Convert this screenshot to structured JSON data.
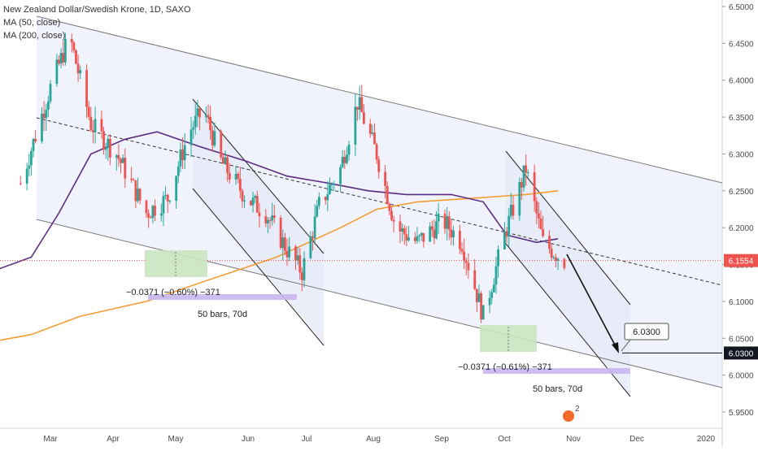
{
  "header": {
    "title": "New Zealand Dollar/Swedish Krone, 1D, SAXO",
    "ma50_label": "MA (50, close)",
    "ma200_label": "MA (200, close)"
  },
  "colors": {
    "up": "#26a69a",
    "down": "#ef5350",
    "ma50": "#5b2c83",
    "ma200": "#f39c32",
    "channel_fill": "#eef0fb",
    "current_price_badge": "#ef5350",
    "target_badge": "#131722",
    "measure_green": "#c9e6c1",
    "measure_purple": "#c9b6ef"
  },
  "chart_data": {
    "type": "candlestick",
    "title": "New Zealand Dollar/Swedish Krone, 1D, SAXO",
    "x_axis_labels": [
      "Mar",
      "Apr",
      "May",
      "Jun",
      "Jul",
      "Aug",
      "Sep",
      "Oct",
      "Nov",
      "Dec",
      "2020"
    ],
    "y_axis_labels": [
      "6.5000",
      "6.4500",
      "6.4000",
      "6.3500",
      "6.3000",
      "6.2500",
      "6.2000",
      "6.1500",
      "6.1000",
      "6.0500",
      "6.0000",
      "5.9500"
    ],
    "ylim": [
      5.935,
      6.505
    ],
    "grid": false,
    "series": [
      {
        "name": "MA (50, close)",
        "type": "line"
      },
      {
        "name": "MA (200, close)",
        "type": "line"
      }
    ],
    "approx_close_path": [
      {
        "date": "2019-02-15",
        "close": 6.26
      },
      {
        "date": "2019-03-01",
        "close": 6.39
      },
      {
        "date": "2019-03-10",
        "close": 6.46
      },
      {
        "date": "2019-03-20",
        "close": 6.34
      },
      {
        "date": "2019-04-01",
        "close": 6.3
      },
      {
        "date": "2019-04-15",
        "close": 6.22
      },
      {
        "date": "2019-04-25",
        "close": 6.24
      },
      {
        "date": "2019-05-05",
        "close": 6.33
      },
      {
        "date": "2019-05-12",
        "close": 6.36
      },
      {
        "date": "2019-05-20",
        "close": 6.29
      },
      {
        "date": "2019-06-01",
        "close": 6.24
      },
      {
        "date": "2019-06-10",
        "close": 6.22
      },
      {
        "date": "2019-06-20",
        "close": 6.17
      },
      {
        "date": "2019-06-27",
        "close": 6.14
      },
      {
        "date": "2019-07-05",
        "close": 6.23
      },
      {
        "date": "2019-07-15",
        "close": 6.28
      },
      {
        "date": "2019-07-23",
        "close": 6.37
      },
      {
        "date": "2019-08-01",
        "close": 6.3
      },
      {
        "date": "2019-08-10",
        "close": 6.2
      },
      {
        "date": "2019-08-20",
        "close": 6.18
      },
      {
        "date": "2019-09-01",
        "close": 6.21
      },
      {
        "date": "2019-09-10",
        "close": 6.18
      },
      {
        "date": "2019-09-20",
        "close": 6.08
      },
      {
        "date": "2019-09-30",
        "close": 6.19
      },
      {
        "date": "2019-10-10",
        "close": 6.28
      },
      {
        "date": "2019-10-18",
        "close": 6.18
      },
      {
        "date": "2019-10-28",
        "close": 6.155
      }
    ],
    "ma50_path": [
      {
        "date": "2019-02-01",
        "value": 6.14
      },
      {
        "date": "2019-02-20",
        "value": 6.16
      },
      {
        "date": "2019-03-05",
        "value": 6.22
      },
      {
        "date": "2019-03-20",
        "value": 6.3
      },
      {
        "date": "2019-04-05",
        "value": 6.32
      },
      {
        "date": "2019-04-20",
        "value": 6.33
      },
      {
        "date": "2019-05-10",
        "value": 6.31
      },
      {
        "date": "2019-06-01",
        "value": 6.29
      },
      {
        "date": "2019-06-20",
        "value": 6.27
      },
      {
        "date": "2019-07-10",
        "value": 6.26
      },
      {
        "date": "2019-07-28",
        "value": 6.25
      },
      {
        "date": "2019-08-15",
        "value": 6.245
      },
      {
        "date": "2019-09-05",
        "value": 6.245
      },
      {
        "date": "2019-09-20",
        "value": 6.235
      },
      {
        "date": "2019-10-01",
        "value": 6.19
      },
      {
        "date": "2019-10-15",
        "value": 6.18
      },
      {
        "date": "2019-10-25",
        "value": 6.185
      }
    ],
    "ma200_path": [
      {
        "date": "2019-02-01",
        "value": 6.045
      },
      {
        "date": "2019-02-20",
        "value": 6.055
      },
      {
        "date": "2019-03-15",
        "value": 6.08
      },
      {
        "date": "2019-04-15",
        "value": 6.1
      },
      {
        "date": "2019-05-15",
        "value": 6.13
      },
      {
        "date": "2019-06-15",
        "value": 6.16
      },
      {
        "date": "2019-07-15",
        "value": 6.2
      },
      {
        "date": "2019-08-01",
        "value": 6.225
      },
      {
        "date": "2019-08-20",
        "value": 6.235
      },
      {
        "date": "2019-09-15",
        "value": 6.24
      },
      {
        "date": "2019-10-10",
        "value": 6.245
      },
      {
        "date": "2019-10-25",
        "value": 6.25
      }
    ],
    "annotations": {
      "current_price": "6.1554",
      "target_price": "6.0300",
      "target_callout": "6.0300",
      "measure_1": "−0.0371 (−0.60%) −371",
      "bars_1": "50 bars, 70d",
      "measure_2": "−0.0371 (−0.61%) −371",
      "bars_2": "50 bars, 70d"
    }
  }
}
